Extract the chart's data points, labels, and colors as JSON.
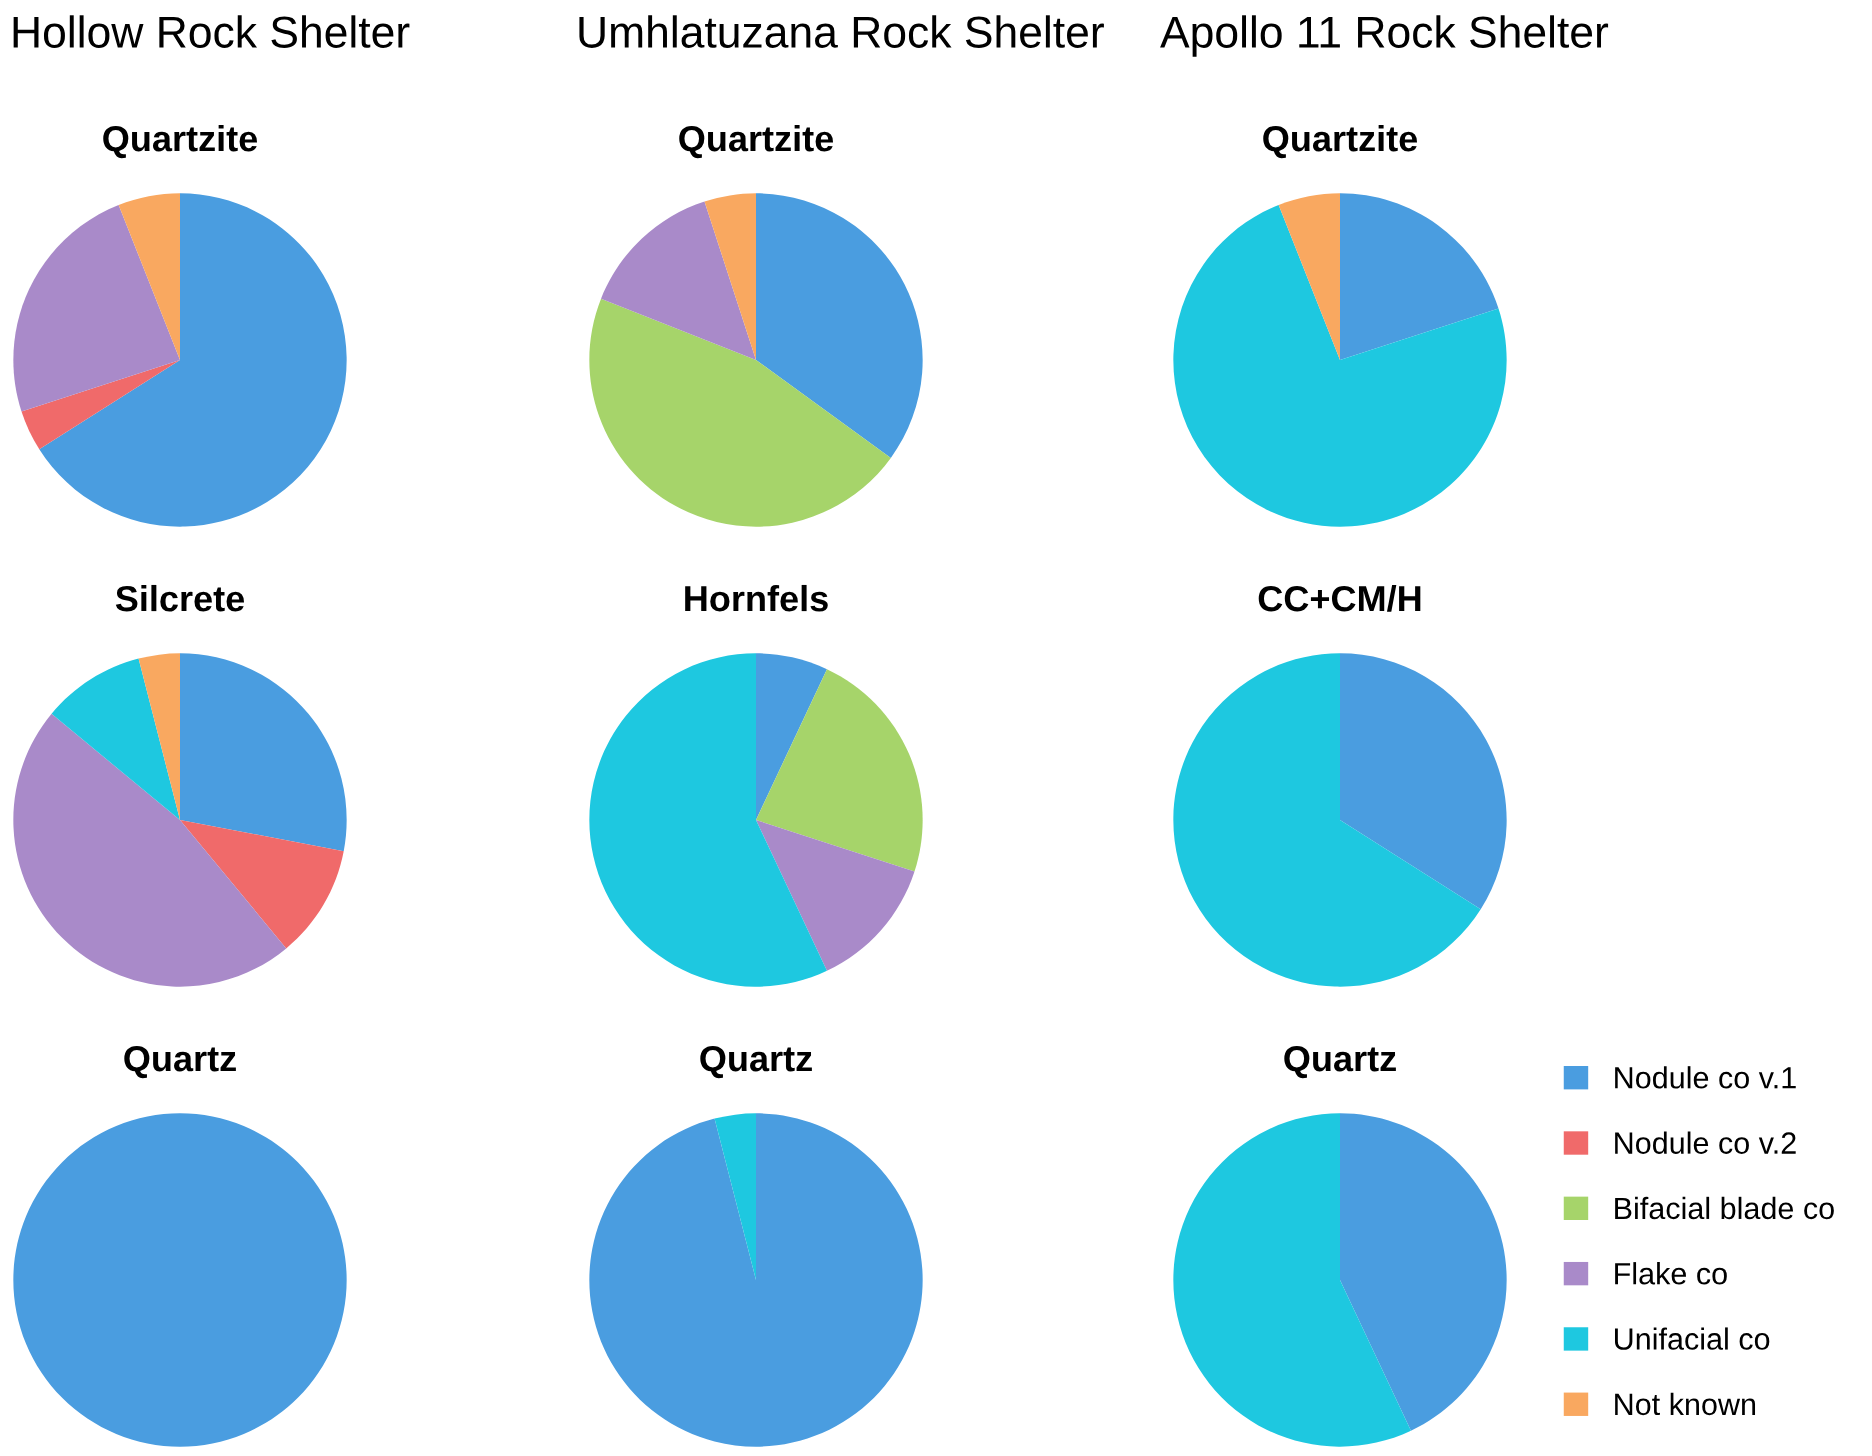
{
  "chart_data": [
    {
      "type": "pie",
      "title": "Hollow Rock Shelter",
      "subtitle": "Quartzite",
      "categories": [
        "Nodule co v.1",
        "Nodule co v.2",
        "Bifacial blade co",
        "Flake co",
        "Unifacial co",
        "Not known"
      ],
      "values": [
        66,
        4,
        0,
        24,
        0,
        6
      ],
      "colors": [
        "#4a9de0",
        "#f06a6a",
        "#a6d46a",
        "#a98ac9",
        "#1ec8e0",
        "#f9a860"
      ],
      "legend": "bottom right"
    },
    {
      "type": "pie",
      "title": "Umhlatuzana Rock Shelter",
      "subtitle": "Quartzite",
      "categories": [
        null,
        null,
        null,
        null,
        null,
        null
      ],
      "values": [
        35,
        0,
        46,
        14,
        0,
        5
      ],
      "colors": [
        "#4a9de0",
        "#f06a6a",
        "#a6d46a",
        "#a98ac9",
        "#1ec8e0",
        "#f9a860"
      ]
    },
    {
      "type": "pie",
      "title": "Apollo 11 Rock Shelter",
      "subtitle": "Quartzite",
      "categories": [
        null,
        null,
        null,
        null,
        null,
        null
      ],
      "values": [
        20,
        0,
        0,
        0,
        74,
        6
      ],
      "colors": [
        "#4a9de0",
        "#f06a6a",
        "#a6d46a",
        "#a98ac9",
        "#1ec8e0",
        "#f9a860"
      ]
    },
    {
      "type": "pie",
      "title": "Silcrete",
      "categories": [
        null,
        null,
        null,
        null,
        null,
        null
      ],
      "values": [
        28,
        11,
        0,
        47,
        10,
        4
      ],
      "colors": [
        "#4a9de0",
        "#f06a6a",
        "#a6d46a",
        "#a98ac9",
        "#1ec8e0",
        "#f9a860"
      ]
    },
    {
      "type": "pie",
      "title": "Hornfels",
      "categories": [
        null,
        null,
        null,
        null,
        null,
        null
      ],
      "values": [
        7,
        0,
        23,
        13,
        57,
        0
      ],
      "colors": [
        "#4a9de0",
        "#f06a6a",
        "#a6d46a",
        "#a98ac9",
        "#1ec8e0",
        "#f9a860"
      ]
    },
    {
      "type": "pie",
      "title": "CC+CM/H",
      "categories": [
        null,
        null,
        null,
        null,
        null,
        null
      ],
      "values": [
        34,
        0,
        0,
        0,
        66,
        0
      ],
      "colors": [
        "#4a9de0",
        "#f06a6a",
        "#a6d46a",
        "#a98ac9",
        "#1ec8e0",
        "#f9a860"
      ]
    },
    {
      "type": "pie",
      "title": "Quartz",
      "categories": [
        null,
        null,
        null,
        null,
        null,
        null
      ],
      "values": [
        100,
        0,
        0,
        0,
        0,
        0
      ],
      "colors": [
        "#4a9de0",
        "#f06a6a",
        "#a6d46a",
        "#a98ac9",
        "#1ec8e0",
        "#f9a860"
      ]
    },
    {
      "type": "pie",
      "title": "Quartz",
      "categories": [
        null,
        null,
        null,
        null,
        null,
        null
      ],
      "values": [
        96,
        0,
        0,
        0,
        4,
        0
      ],
      "colors": [
        "#4a9de0",
        "#f06a6a",
        "#a6d46a",
        "#a98ac9",
        "#1ec8e0",
        "#f9a860"
      ]
    },
    {
      "type": "pie",
      "title": "Quartz",
      "categories": [
        null,
        null,
        null,
        null,
        null,
        null
      ],
      "values": [
        43,
        0,
        0,
        0,
        57,
        0
      ],
      "colors": [
        "#4a9de0",
        "#f06a6a",
        "#a6d46a",
        "#a98ac9",
        "#1ec8e0",
        "#f9a860"
      ]
    }
  ]
}
